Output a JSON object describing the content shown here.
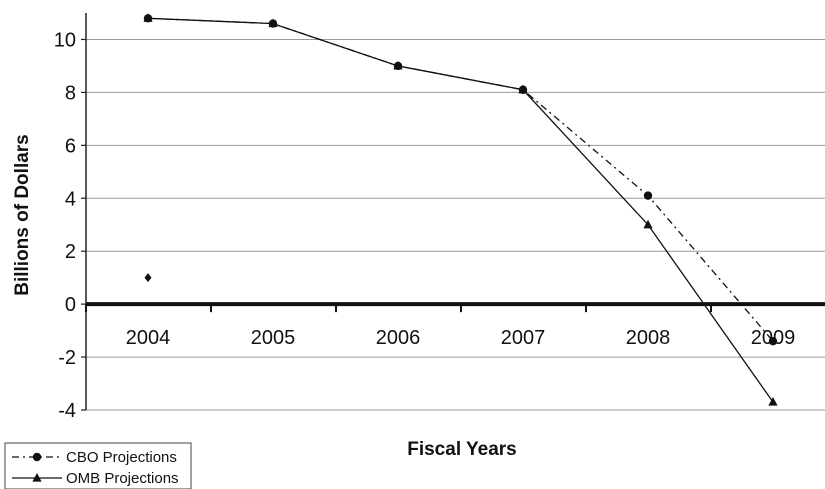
{
  "chart_data": {
    "type": "line",
    "categories": [
      "2004",
      "2005",
      "2006",
      "2007",
      "2008",
      "2009"
    ],
    "series": [
      {
        "name": "CBO Projections",
        "values": [
          10.8,
          10.6,
          9.0,
          8.1,
          4.1,
          -1.4
        ],
        "line_style": "dashed",
        "marker": "circle",
        "color": "#111111"
      },
      {
        "name": "OMB Projections",
        "values": [
          10.8,
          10.6,
          9.0,
          8.1,
          3.0,
          -3.7
        ],
        "line_style": "solid",
        "marker": "triangle",
        "color": "#111111"
      }
    ],
    "annotations": [
      {
        "category": "2004",
        "value": 1.0,
        "marker": "diamond"
      }
    ],
    "title": "",
    "xlabel": "Fiscal Years",
    "ylabel": "Billions of Dollars",
    "ylim": [
      -4,
      11
    ],
    "yticks": [
      "10",
      "8",
      "6",
      "4",
      "2",
      "0",
      "-2",
      "-4"
    ],
    "grid": true,
    "legend_position": "bottom-left"
  }
}
